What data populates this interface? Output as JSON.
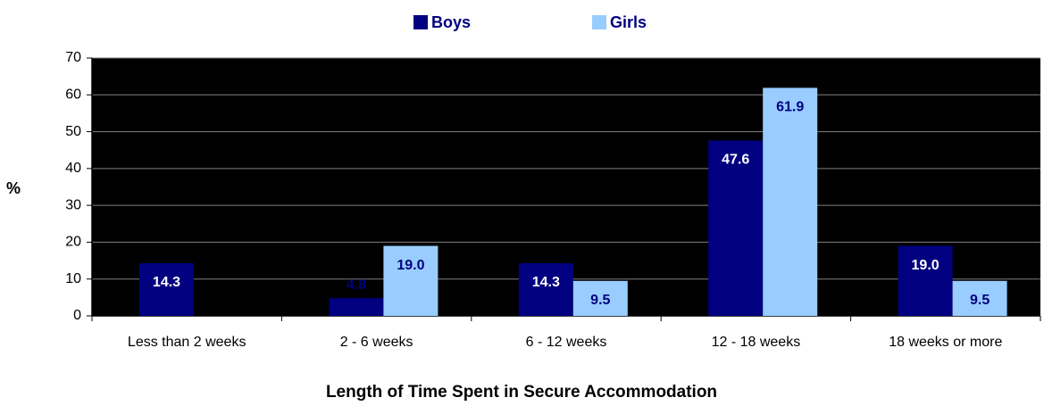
{
  "chart_data": {
    "type": "bar",
    "x_label": "Length of Time Spent in Secure Accommodation",
    "y_label": "%",
    "categories": [
      "Less than 2 weeks",
      "2 - 6 weeks",
      "6 - 12 weeks",
      "12 - 18 weeks",
      "18 weeks or more"
    ],
    "series": [
      {
        "name": "Boys",
        "color": "#000080",
        "values": [
          14.3,
          4.8,
          14.3,
          47.6,
          19.0
        ],
        "value_labels": [
          "14.3",
          "4.8",
          "14.3",
          "47.6",
          "19.0"
        ]
      },
      {
        "name": "Girls",
        "color": "#99ccff",
        "values": [
          null,
          19.0,
          9.5,
          61.9,
          9.5
        ],
        "value_labels": [
          null,
          "19.0",
          "9.5",
          "61.9",
          "9.5"
        ]
      }
    ],
    "ylim": [
      0,
      70
    ],
    "yticks": [
      0,
      10,
      20,
      30,
      40,
      50,
      60,
      70
    ],
    "grid": true,
    "legend": "top",
    "background": "#000000"
  }
}
